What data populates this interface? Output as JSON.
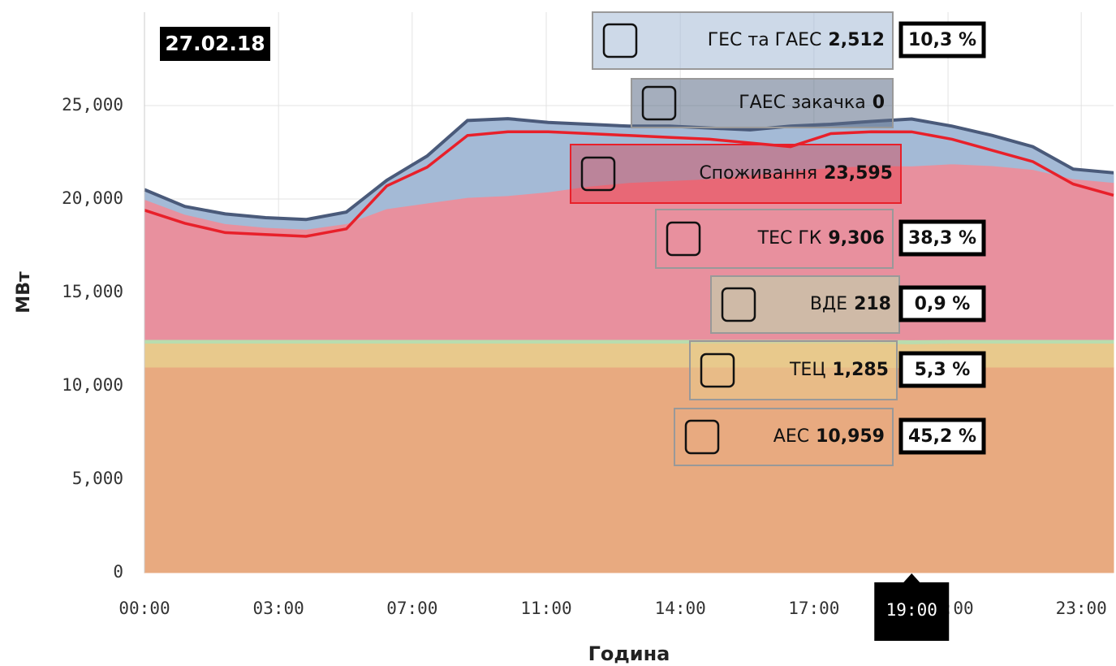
{
  "chart_data": {
    "type": "area",
    "stacked": true,
    "annotation": "27.02.18",
    "xlabel": "Година",
    "ylabel": "МВт",
    "x": [
      0,
      1,
      2,
      3,
      4,
      5,
      6,
      7,
      8,
      9,
      10,
      11,
      12,
      13,
      14,
      15,
      16,
      17,
      18,
      19,
      20,
      21,
      22,
      23,
      24
    ],
    "xlim": [
      0,
      24
    ],
    "xticks": [
      {
        "value": 0,
        "label": "00:00"
      },
      {
        "value": 3.32,
        "label": "03:00"
      },
      {
        "value": 6.63,
        "label": "07:00"
      },
      {
        "value": 9.95,
        "label": "11:00"
      },
      {
        "value": 13.27,
        "label": "14:00"
      },
      {
        "value": 16.58,
        "label": "17:00"
      },
      {
        "value": 19.9,
        "label": "21:00"
      },
      {
        "value": 23.2,
        "label": "23:00"
      }
    ],
    "ylim": [
      0,
      30000
    ],
    "yticks": [
      0,
      {
        "value": 5000,
        "label": "5,000"
      },
      {
        "value": 10000,
        "label": "10,000"
      },
      {
        "value": 15000,
        "label": "15,000"
      },
      {
        "value": 20000,
        "label": "20,000"
      },
      {
        "value": 25000,
        "label": "25,000"
      }
    ],
    "grid": true,
    "crosshair": {
      "value": 19,
      "label": "19:00"
    },
    "series": [
      {
        "name": "АЕС",
        "color": "#e8aa80",
        "value_label": "10,959",
        "share_label": "45,2 %",
        "values": [
          11000,
          11000,
          11000,
          11000,
          11000,
          11000,
          11000,
          11000,
          11000,
          11000,
          11000,
          11000,
          11000,
          11000,
          11000,
          11000,
          11000,
          11000,
          11000,
          10959,
          11000,
          11000,
          11000,
          11000,
          11000
        ]
      },
      {
        "name": "ТЕЦ",
        "color": "#e8c98c",
        "value_label": "1,285",
        "share_label": "5,3 %",
        "values": [
          1280,
          1280,
          1280,
          1280,
          1280,
          1280,
          1280,
          1280,
          1280,
          1280,
          1280,
          1280,
          1280,
          1280,
          1280,
          1280,
          1280,
          1280,
          1280,
          1285,
          1280,
          1280,
          1280,
          1280,
          1280
        ]
      },
      {
        "name": "ВДЕ",
        "color": "#b9dcae",
        "value_label": "218",
        "share_label": "0,9 %",
        "values": [
          200,
          200,
          200,
          200,
          200,
          200,
          200,
          200,
          200,
          200,
          200,
          200,
          200,
          200,
          200,
          200,
          200,
          200,
          200,
          218,
          200,
          200,
          200,
          200,
          200
        ]
      },
      {
        "name": "ТЕС ГК",
        "color": "#e8909e",
        "value_label": "9,306",
        "share_label": "38,3 %",
        "values": [
          7500,
          6700,
          6200,
          6000,
          5900,
          6200,
          7000,
          7300,
          7600,
          7700,
          7900,
          8200,
          8400,
          8500,
          8600,
          8800,
          9000,
          9200,
          9300,
          9306,
          9400,
          9300,
          9100,
          8600,
          8400
        ]
      },
      {
        "name": "ГЕС та ГАЕС",
        "color": "#a4bad6",
        "value_label": "2,512",
        "share_label": "10,3 %",
        "values": [
          520,
          420,
          520,
          520,
          520,
          620,
          1520,
          2520,
          4120,
          4120,
          3720,
          3320,
          3020,
          2920,
          2720,
          2420,
          2420,
          2320,
          2370,
          2512,
          2020,
          1620,
          1220,
          520,
          520
        ]
      },
      {
        "name": "ГАЕС закачка",
        "color": "#5b6b86",
        "value_label": "0",
        "values": [
          0,
          0,
          0,
          0,
          0,
          0,
          0,
          0,
          0,
          0,
          0,
          0,
          0,
          0,
          0,
          0,
          0,
          0,
          0,
          0,
          0,
          0,
          0,
          0,
          0
        ]
      },
      {
        "name": "Споживання",
        "color": "#e8202a",
        "type": "line",
        "value_label": "23,595",
        "values": [
          19400,
          18700,
          18200,
          18100,
          18000,
          18400,
          20700,
          21700,
          23400,
          23600,
          23600,
          23500,
          23400,
          23300,
          23200,
          23000,
          22800,
          23500,
          23600,
          23595,
          23200,
          22600,
          22000,
          20800,
          20200
        ]
      }
    ]
  }
}
